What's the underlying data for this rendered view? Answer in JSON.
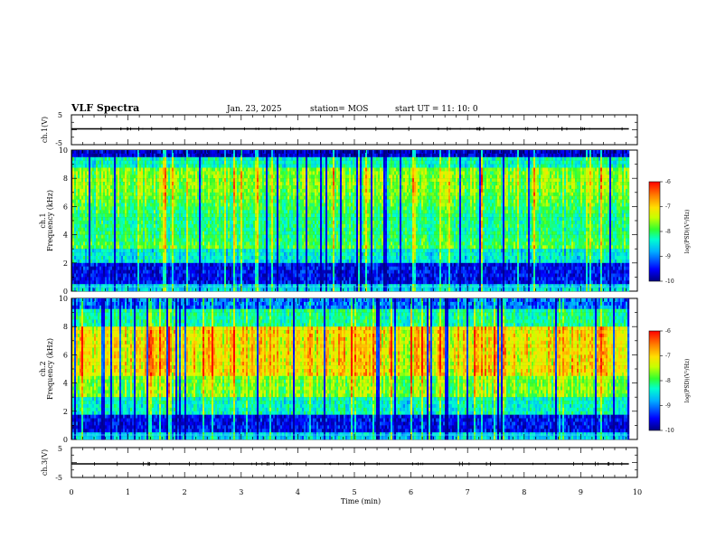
{
  "header": {
    "title": "VLF Spectra",
    "date": "Jan. 23, 2025",
    "station": "station= MOS",
    "start": "start  UT  =    11: 10: 0"
  },
  "colors": {
    "background": "#ffffff",
    "spectrogram_scale": [
      "#00007f",
      "#0000ff",
      "#00b0ff",
      "#00ffd0",
      "#30ff30",
      "#c8ff00",
      "#ffe000",
      "#ff8000",
      "#ff0000"
    ]
  },
  "chart_data": [
    {
      "type": "line",
      "name": "ch1-waveform",
      "ylabel": "ch.1(V)",
      "ylim": [
        -5,
        5
      ],
      "yticks": [
        "5",
        "-5"
      ],
      "xlim": [
        0,
        10
      ],
      "x": [
        0,
        9.85
      ],
      "y": [
        0,
        0
      ]
    },
    {
      "type": "heatmap",
      "name": "ch1-spectrogram",
      "ylabel": "ch.1\nFrequency (kHz)",
      "ylim": [
        0,
        10
      ],
      "yticks": [
        "0",
        "2",
        "4",
        "6",
        "8",
        "10"
      ],
      "xlim": [
        0,
        9.85
      ],
      "colorbar": {
        "label": "log(PSD)(V²/Hz)",
        "range": [
          -10,
          -6
        ],
        "ticks": [
          "-6",
          "-7",
          "-8",
          "-9",
          "-10"
        ]
      }
    },
    {
      "type": "heatmap",
      "name": "ch2-spectrogram",
      "ylabel": "ch.2\nFrequency (kHz)",
      "ylim": [
        0,
        10
      ],
      "yticks": [
        "0",
        "2",
        "4",
        "6",
        "8",
        "10"
      ],
      "xlim": [
        0,
        9.85
      ],
      "colorbar": {
        "label": "log(PSD)(V²/Hz)",
        "range": [
          -10,
          -6
        ],
        "ticks": [
          "-6",
          "-7",
          "-8",
          "-9",
          "-10"
        ]
      }
    },
    {
      "type": "line",
      "name": "ch3-waveform",
      "ylabel": "ch.3(V)",
      "ylim": [
        -5,
        5
      ],
      "yticks": [
        "5",
        "-5"
      ],
      "xlim": [
        0,
        10
      ],
      "x": [
        0,
        9.85
      ],
      "y": [
        0,
        0
      ]
    }
  ],
  "xaxis": {
    "label": "Time (min)",
    "range": [
      0,
      10
    ],
    "ticks": [
      "0",
      "1",
      "2",
      "3",
      "4",
      "5",
      "6",
      "7",
      "8",
      "9",
      "10"
    ]
  }
}
